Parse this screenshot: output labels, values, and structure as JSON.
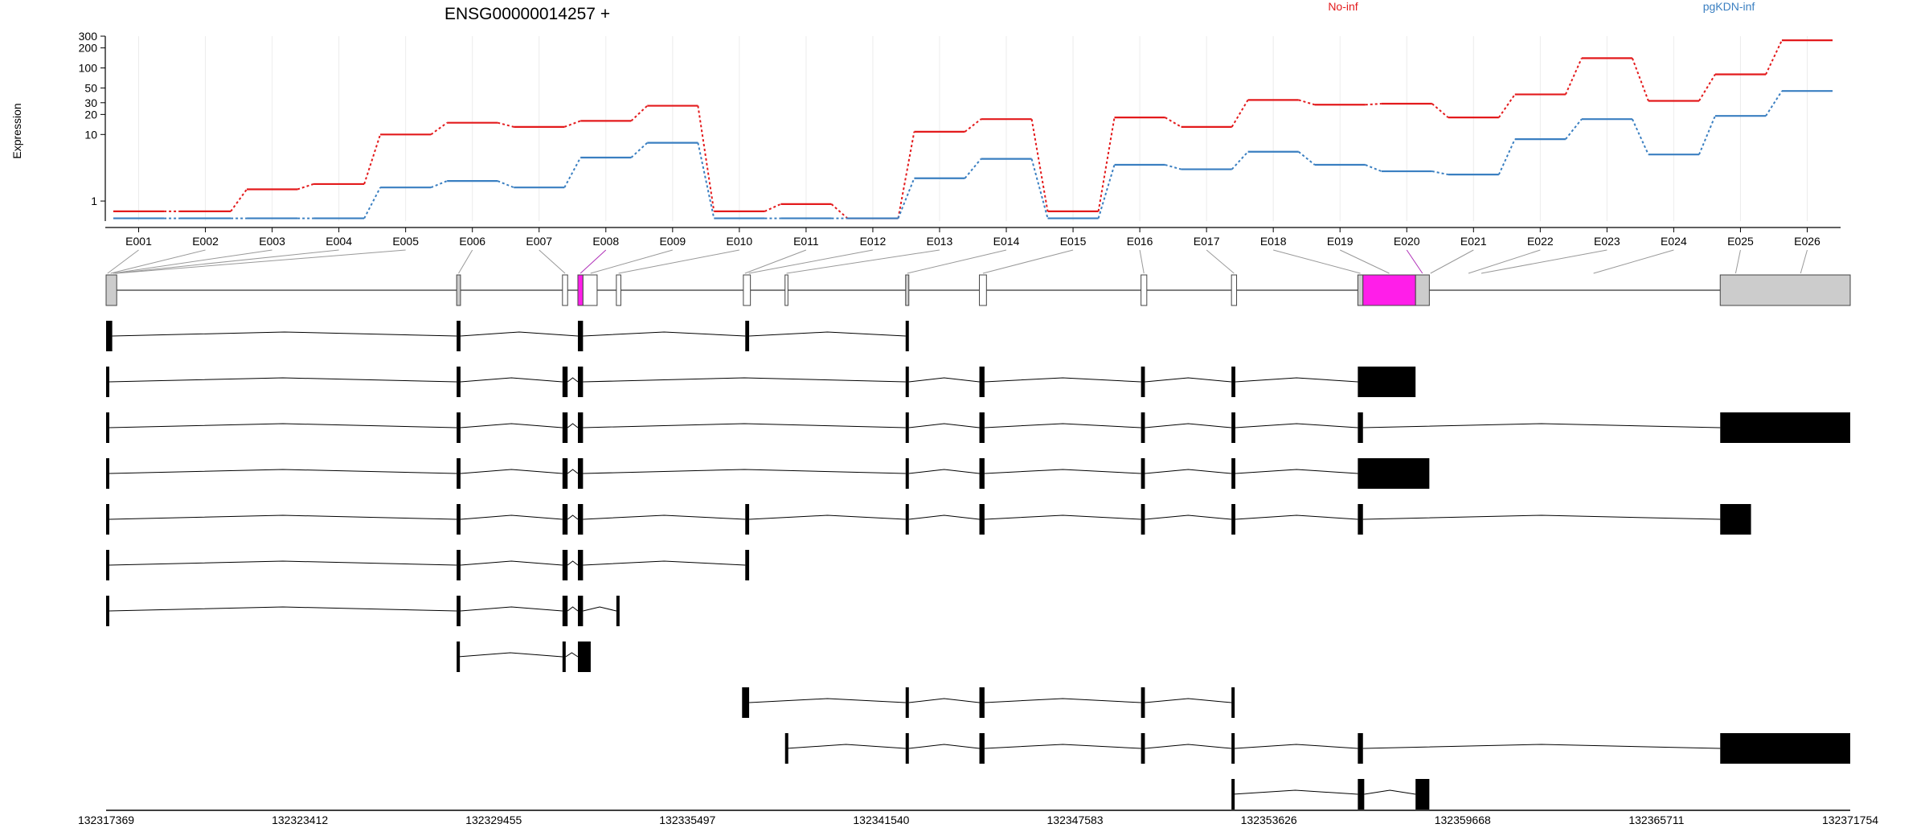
{
  "chart_data": {
    "type": "line",
    "title": "ENSG00000014257 +",
    "ylabel": "Expression",
    "yscale": "log",
    "ylim": [
      0.5,
      300
    ],
    "yticks": [
      1,
      10,
      20,
      30,
      50,
      100,
      200,
      300
    ],
    "grid": true,
    "legend_placement": "top",
    "categories": [
      "E001",
      "E002",
      "E003",
      "E004",
      "E005",
      "E006",
      "E007",
      "E008",
      "E009",
      "E010",
      "E011",
      "E012",
      "E013",
      "E014",
      "E015",
      "E016",
      "E017",
      "E018",
      "E019",
      "E020",
      "E021",
      "E022",
      "E023",
      "E024",
      "E025",
      "E026"
    ],
    "series": [
      {
        "name": "No-inf",
        "color": "#e31a1c",
        "values": [
          0.7,
          0.7,
          1.5,
          1.8,
          10,
          15,
          13,
          16,
          27,
          0.7,
          0.9,
          0.55,
          11,
          17,
          0.7,
          18,
          13,
          33,
          28,
          29,
          18,
          40,
          140,
          32,
          80,
          260
        ]
      },
      {
        "name": "pgKDN-inf",
        "color": "#3a7fc1",
        "values": [
          0.55,
          0.55,
          0.55,
          0.55,
          1.6,
          2,
          1.6,
          4.5,
          7.5,
          0.55,
          0.55,
          0.55,
          2.2,
          4.3,
          0.55,
          3.5,
          3,
          5.5,
          3.5,
          2.8,
          2.5,
          8.5,
          17,
          5,
          19,
          45
        ]
      }
    ],
    "gene_model": {
      "axis_ticks": [
        "132317369",
        "132323412",
        "132329455",
        "132335497",
        "132341540",
        "132347583",
        "132353626",
        "132359668",
        "132365711",
        "132371754"
      ],
      "axis_range": [
        132317369,
        132371754
      ],
      "highlight_color": "#ff1ee9",
      "highlighted_bins": [
        "E008",
        "E020"
      ],
      "bin_spans": [
        [
          132317369,
          132317460
        ],
        [
          132317460,
          132317560
        ],
        [
          132317560,
          132317620
        ],
        [
          132317620,
          132317660
        ],
        [
          132317660,
          132317700
        ],
        [
          132328300,
          132328420
        ],
        [
          132331600,
          132331760
        ],
        [
          132332080,
          132332240
        ],
        [
          132332270,
          132332680
        ],
        [
          132333280,
          132333420
        ],
        [
          132337240,
          132337340
        ],
        [
          132337360,
          132337460
        ],
        [
          132338540,
          132338630
        ],
        [
          132342300,
          132342400
        ],
        [
          132344600,
          132344820
        ],
        [
          132349640,
          132349820
        ],
        [
          132352460,
          132352620
        ],
        [
          132356400,
          132356560
        ],
        [
          132356560,
          132358200
        ],
        [
          132358200,
          132358630
        ],
        [
          132358630,
          132358700
        ],
        [
          132359700,
          132360000
        ],
        [
          132360000,
          132360500
        ],
        [
          132361000,
          132366500
        ],
        [
          132367700,
          132368660
        ],
        [
          132368660,
          132371754
        ]
      ],
      "composite_exons": [
        [
          132317369,
          132317700,
          "gray"
        ],
        [
          132328300,
          132328420,
          "gray"
        ],
        [
          132331600,
          132331760,
          "white"
        ],
        [
          132332080,
          132332240,
          "pink"
        ],
        [
          132332240,
          132332680,
          "white"
        ],
        [
          132333280,
          132333420,
          "white"
        ],
        [
          132337240,
          132337460,
          "white"
        ],
        [
          132338540,
          132338630,
          "white"
        ],
        [
          132342300,
          132342400,
          "gray"
        ],
        [
          132344600,
          132344820,
          "white"
        ],
        [
          132349640,
          132349820,
          "white"
        ],
        [
          132352460,
          132352620,
          "white"
        ],
        [
          132356400,
          132356560,
          "gray"
        ],
        [
          132356560,
          132358200,
          "pink"
        ],
        [
          132358200,
          132358630,
          "gray"
        ],
        [
          132367700,
          132371754,
          "gray"
        ]
      ],
      "transcripts": [
        [
          [
            132317369,
            132317560
          ],
          [
            132328300,
            132328420
          ],
          [
            132332080,
            132332240
          ],
          [
            132337300,
            132337420
          ],
          [
            132342300,
            132342400
          ]
        ],
        [
          [
            132317369,
            132317460
          ],
          [
            132328300,
            132328420
          ],
          [
            132331600,
            132331760
          ],
          [
            132332080,
            132332240
          ],
          [
            132342300,
            132342400
          ],
          [
            132344600,
            132344760
          ],
          [
            132349640,
            132349760
          ],
          [
            132352460,
            132352580
          ],
          [
            132356400,
            132358200
          ]
        ],
        [
          [
            132317369,
            132317460
          ],
          [
            132328300,
            132328420
          ],
          [
            132331600,
            132331760
          ],
          [
            132332080,
            132332240
          ],
          [
            132342300,
            132342400
          ],
          [
            132344600,
            132344760
          ],
          [
            132349640,
            132349760
          ],
          [
            132352460,
            132352580
          ],
          [
            132356400,
            132356560
          ],
          [
            132367700,
            132371754
          ]
        ],
        [
          [
            132317369,
            132317460
          ],
          [
            132328300,
            132328420
          ],
          [
            132331600,
            132331760
          ],
          [
            132332080,
            132332240
          ],
          [
            132342300,
            132342400
          ],
          [
            132344600,
            132344760
          ],
          [
            132349640,
            132349760
          ],
          [
            132352460,
            132352580
          ],
          [
            132356400,
            132358630
          ]
        ],
        [
          [
            132317369,
            132317460
          ],
          [
            132328300,
            132328420
          ],
          [
            132331600,
            132331760
          ],
          [
            132332080,
            132332240
          ],
          [
            132337300,
            132337420
          ],
          [
            132342300,
            132342400
          ],
          [
            132344600,
            132344760
          ],
          [
            132349640,
            132349760
          ],
          [
            132352460,
            132352580
          ],
          [
            132356400,
            132356560
          ],
          [
            132367700,
            132368660
          ]
        ],
        [
          [
            132317369,
            132317460
          ],
          [
            132328300,
            132328420
          ],
          [
            132331600,
            132331760
          ],
          [
            132332080,
            132332240
          ],
          [
            132337300,
            132337420
          ]
        ],
        [
          [
            132317369,
            132317460
          ],
          [
            132328300,
            132328420
          ],
          [
            132331600,
            132331760
          ],
          [
            132332080,
            132332240
          ],
          [
            132333280,
            132333340
          ]
        ],
        [
          [
            132328300,
            132328340
          ],
          [
            132331600,
            132331700
          ],
          [
            132332080,
            132332480
          ]
        ],
        [
          [
            132337200,
            132337420
          ],
          [
            132342300,
            132342400
          ],
          [
            132344600,
            132344760
          ],
          [
            132349640,
            132349760
          ],
          [
            132352460,
            132352560
          ]
        ],
        [
          [
            132338540,
            132338580
          ],
          [
            132342300,
            132342400
          ],
          [
            132344600,
            132344760
          ],
          [
            132349640,
            132349760
          ],
          [
            132352460,
            132352560
          ],
          [
            132356400,
            132356560
          ],
          [
            132367700,
            132371754
          ]
        ],
        [
          [
            132352460,
            132352500
          ],
          [
            132356400,
            132356600
          ],
          [
            132358200,
            132358630
          ]
        ]
      ]
    }
  }
}
